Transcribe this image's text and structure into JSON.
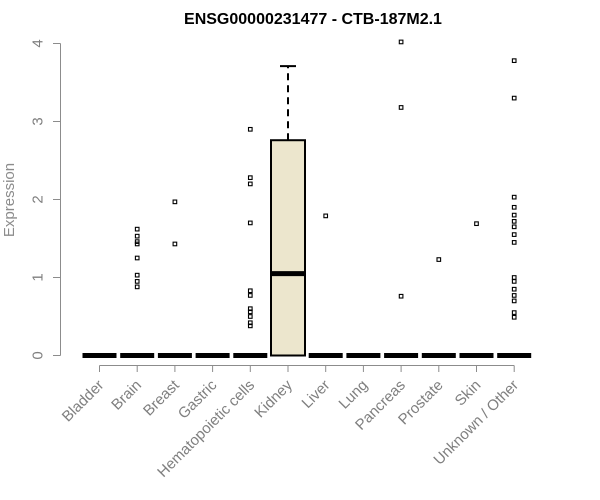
{
  "chart_data": {
    "type": "boxplot",
    "title": "ENSG00000231477 - CTB-187M2.1",
    "xlabel": "",
    "ylabel": "Expression",
    "ylim": [
      0,
      4
    ],
    "yticks": [
      0,
      1,
      2,
      3,
      4
    ],
    "grid": false,
    "box_fill": "#ece6cd",
    "categories": [
      "Bladder",
      "Brain",
      "Breast",
      "Gastric",
      "Hematopoietic cells",
      "Kidney",
      "Liver",
      "Lung",
      "Pancreas",
      "Prostate",
      "Skin",
      "Unknown / Other"
    ],
    "series": [
      {
        "category": "Bladder",
        "q1": 0,
        "median": 0,
        "q3": 0,
        "whisker_low": 0,
        "whisker_high": 0,
        "outliers": []
      },
      {
        "category": "Brain",
        "q1": 0,
        "median": 0,
        "q3": 0,
        "whisker_low": 0,
        "whisker_high": 0,
        "outliers": [
          0.88,
          0.95,
          1.03,
          1.25,
          1.43,
          1.46,
          1.53,
          1.62
        ]
      },
      {
        "category": "Breast",
        "q1": 0,
        "median": 0,
        "q3": 0,
        "whisker_low": 0,
        "whisker_high": 0,
        "outliers": [
          1.43,
          1.97
        ]
      },
      {
        "category": "Gastric",
        "q1": 0,
        "median": 0,
        "q3": 0,
        "whisker_low": 0,
        "whisker_high": 0,
        "outliers": []
      },
      {
        "category": "Hematopoietic cells",
        "q1": 0,
        "median": 0,
        "q3": 0,
        "whisker_low": 0,
        "whisker_high": 0,
        "outliers": [
          0.38,
          0.42,
          0.5,
          0.56,
          0.6,
          0.77,
          0.83,
          1.7,
          2.2,
          2.28,
          2.9
        ]
      },
      {
        "category": "Kidney",
        "q1": 0,
        "median": 1.05,
        "q3": 2.76,
        "whisker_low": 0,
        "whisker_high": 3.71,
        "outliers": []
      },
      {
        "category": "Liver",
        "q1": 0,
        "median": 0,
        "q3": 0,
        "whisker_low": 0,
        "whisker_high": 0,
        "outliers": [
          1.79
        ]
      },
      {
        "category": "Lung",
        "q1": 0,
        "median": 0,
        "q3": 0,
        "whisker_low": 0,
        "whisker_high": 0,
        "outliers": []
      },
      {
        "category": "Pancreas",
        "q1": 0,
        "median": 0,
        "q3": 0,
        "whisker_low": 0,
        "whisker_high": 0,
        "outliers": [
          0.76,
          3.18,
          4.02
        ]
      },
      {
        "category": "Prostate",
        "q1": 0,
        "median": 0,
        "q3": 0,
        "whisker_low": 0,
        "whisker_high": 0,
        "outliers": [
          1.23
        ]
      },
      {
        "category": "Skin",
        "q1": 0,
        "median": 0,
        "q3": 0,
        "whisker_low": 0,
        "whisker_high": 0,
        "outliers": [
          1.69
        ]
      },
      {
        "category": "Unknown / Other",
        "q1": 0,
        "median": 0,
        "q3": 0,
        "whisker_low": 0,
        "whisker_high": 0,
        "outliers": [
          0.49,
          0.55,
          0.7,
          0.77,
          0.85,
          0.95,
          1.0,
          1.45,
          1.55,
          1.65,
          1.72,
          1.8,
          1.9,
          2.03,
          3.3,
          3.78
        ]
      }
    ]
  }
}
